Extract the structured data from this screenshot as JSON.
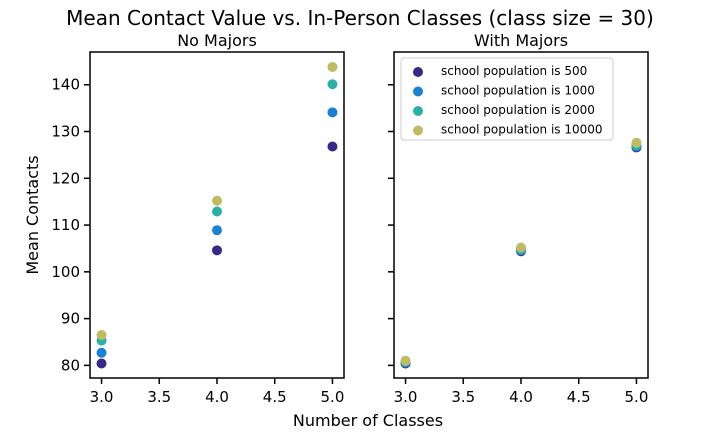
{
  "figure": {
    "title": "Mean Contact Value vs. In-Person Classes (class size = 30)",
    "xlabel": "Number of Classes",
    "ylabel": "Mean Contacts"
  },
  "chart_data": [
    {
      "type": "scatter",
      "title": "No Majors",
      "xlim": [
        2.9,
        5.1
      ],
      "ylim": [
        77.3,
        147.0
      ],
      "xticks": [
        "3.0",
        "3.5",
        "4.0",
        "4.5",
        "5.0"
      ],
      "yticks": [
        "80",
        "90",
        "100",
        "110",
        "120",
        "130",
        "140"
      ],
      "series": [
        {
          "name": "school population is 500",
          "color": "#352a87",
          "x": [
            3.0,
            4.0,
            5.0
          ],
          "y": [
            80.4,
            104.6,
            126.8
          ]
        },
        {
          "name": "school population is 1000",
          "color": "#1a82d4",
          "x": [
            3.0,
            4.0,
            5.0
          ],
          "y": [
            82.7,
            108.9,
            134.1
          ]
        },
        {
          "name": "school population is 2000",
          "color": "#2bb0a8",
          "x": [
            3.0,
            4.0,
            5.0
          ],
          "y": [
            85.3,
            112.9,
            140.1
          ]
        },
        {
          "name": "school population is 10000",
          "color": "#c0bb62",
          "x": [
            3.0,
            4.0,
            5.0
          ],
          "y": [
            86.5,
            115.2,
            143.8
          ]
        }
      ]
    },
    {
      "type": "scatter",
      "title": "With Majors",
      "xlim": [
        2.9,
        5.1
      ],
      "ylim": [
        77.3,
        147.0
      ],
      "xticks": [
        "3.0",
        "3.5",
        "4.0",
        "4.5",
        "5.0"
      ],
      "legend": "top-left",
      "series": [
        {
          "name": "school population is 500",
          "color": "#352a87",
          "x": [
            3.0,
            4.0,
            5.0
          ],
          "y": [
            80.4,
            104.4,
            126.6
          ]
        },
        {
          "name": "school population is 1000",
          "color": "#1a82d4",
          "x": [
            3.0,
            4.0,
            5.0
          ],
          "y": [
            80.6,
            104.6,
            126.8
          ]
        },
        {
          "name": "school population is 2000",
          "color": "#2bb0a8",
          "x": [
            3.0,
            4.0,
            5.0
          ],
          "y": [
            80.8,
            104.8,
            127.1
          ]
        },
        {
          "name": "school population is 10000",
          "color": "#c0bb62",
          "x": [
            3.0,
            4.0,
            5.0
          ],
          "y": [
            81.0,
            105.2,
            127.6
          ]
        }
      ]
    }
  ]
}
